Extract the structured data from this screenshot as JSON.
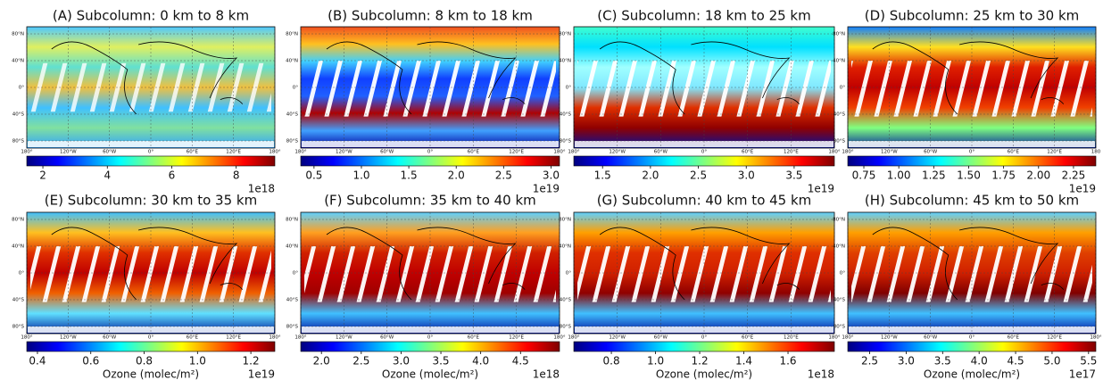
{
  "lat_labels": [
    "80°N",
    "40°N",
    "0°",
    "40°S",
    "80°S"
  ],
  "lon_labels": [
    "180°",
    "120°W",
    "60°W",
    "0°",
    "60°E",
    "120°E",
    "180°"
  ],
  "panels": [
    {
      "title": "(A) Subcolumn: 0 km to 8 km",
      "colorbar": {
        "colormap": "jet",
        "lim": [
          1.5,
          9.2
        ],
        "ticks": [
          2,
          4,
          6,
          8
        ],
        "offset_label": "1e18"
      }
    },
    {
      "title": "(B) Subcolumn: 8 km to 18 km",
      "colorbar": {
        "colormap": "jet",
        "lim": [
          0.36,
          3.09
        ],
        "ticks": [
          0.5,
          {
            "value": 1,
            "label": "1.0"
          },
          1.5,
          {
            "value": 2,
            "label": "2.0"
          },
          2.5,
          {
            "value": 3,
            "label": "3.0"
          }
        ],
        "offset_label": "1e19"
      }
    },
    {
      "title": "(C) Subcolumn: 18 km to 25 km",
      "colorbar": {
        "colormap": "jet",
        "lim": [
          1.2,
          3.92
        ],
        "ticks": [
          1.5,
          {
            "value": 2,
            "label": "2.0"
          },
          2.5,
          {
            "value": 3,
            "label": "3.0"
          },
          3.5
        ],
        "offset_label": "1e19"
      }
    },
    {
      "title": "(D) Subcolumn: 25 km to 30 km",
      "lon_labels": [
        "180°",
        "120°W",
        "60°W",
        "0°",
        "60°E",
        "120°E",
        "180"
      ],
      "colorbar": {
        "colormap": "jet",
        "lim": [
          0.635,
          2.41
        ],
        "ticks": [
          0.75,
          {
            "value": 1,
            "label": "1.00"
          },
          1.25,
          {
            "value": 1.5,
            "label": "1.50"
          },
          1.75,
          {
            "value": 2,
            "label": "2.00"
          },
          2.25
        ],
        "offset_label": "1e19"
      }
    },
    {
      "title": "(E) Subcolumn: 30 km to 35 km",
      "xlabel": "Ozone (molec/m²)",
      "colorbar": {
        "colormap": "jet",
        "lim": [
          0.36,
          1.29
        ],
        "ticks": [
          0.4,
          0.6,
          0.8,
          {
            "value": 1,
            "label": "1.0"
          },
          1.2
        ],
        "offset_label": "1e19"
      }
    },
    {
      "title": "(F) Subcolumn: 35 km to 40 km",
      "xlabel": "Ozone (molec/m²)",
      "colorbar": {
        "colormap": "jet",
        "lim": [
          1.74,
          4.99
        ],
        "ticks": [
          {
            "value": 2,
            "label": "2.0"
          },
          2.5,
          {
            "value": 3,
            "label": "3.0"
          },
          3.5,
          {
            "value": 4,
            "label": "4.0"
          },
          4.5
        ],
        "offset_label": "1e18"
      }
    },
    {
      "title": "(G) Subcolumn: 40 km to 45 km",
      "xlabel": "Ozone (molec/m²)",
      "colorbar": {
        "colormap": "jet",
        "lim": [
          0.63,
          1.81
        ],
        "ticks": [
          0.8,
          {
            "value": 1,
            "label": "1.0"
          },
          1.2,
          1.4,
          1.6
        ],
        "offset_label": "1e18"
      }
    },
    {
      "title": "(H) Subcolumn: 45 km to 50 km",
      "xlabel": "Ozone (molec/m²)",
      "colorbar": {
        "colormap": "jet",
        "lim": [
          2.2,
          5.6
        ],
        "ticks": [
          2.5,
          {
            "value": 3,
            "label": "3.0"
          },
          3.5,
          {
            "value": 4,
            "label": "4.0"
          },
          4.5,
          {
            "value": 5,
            "label": "5.0"
          },
          5.5
        ],
        "offset_label": "1e17"
      }
    }
  ]
}
